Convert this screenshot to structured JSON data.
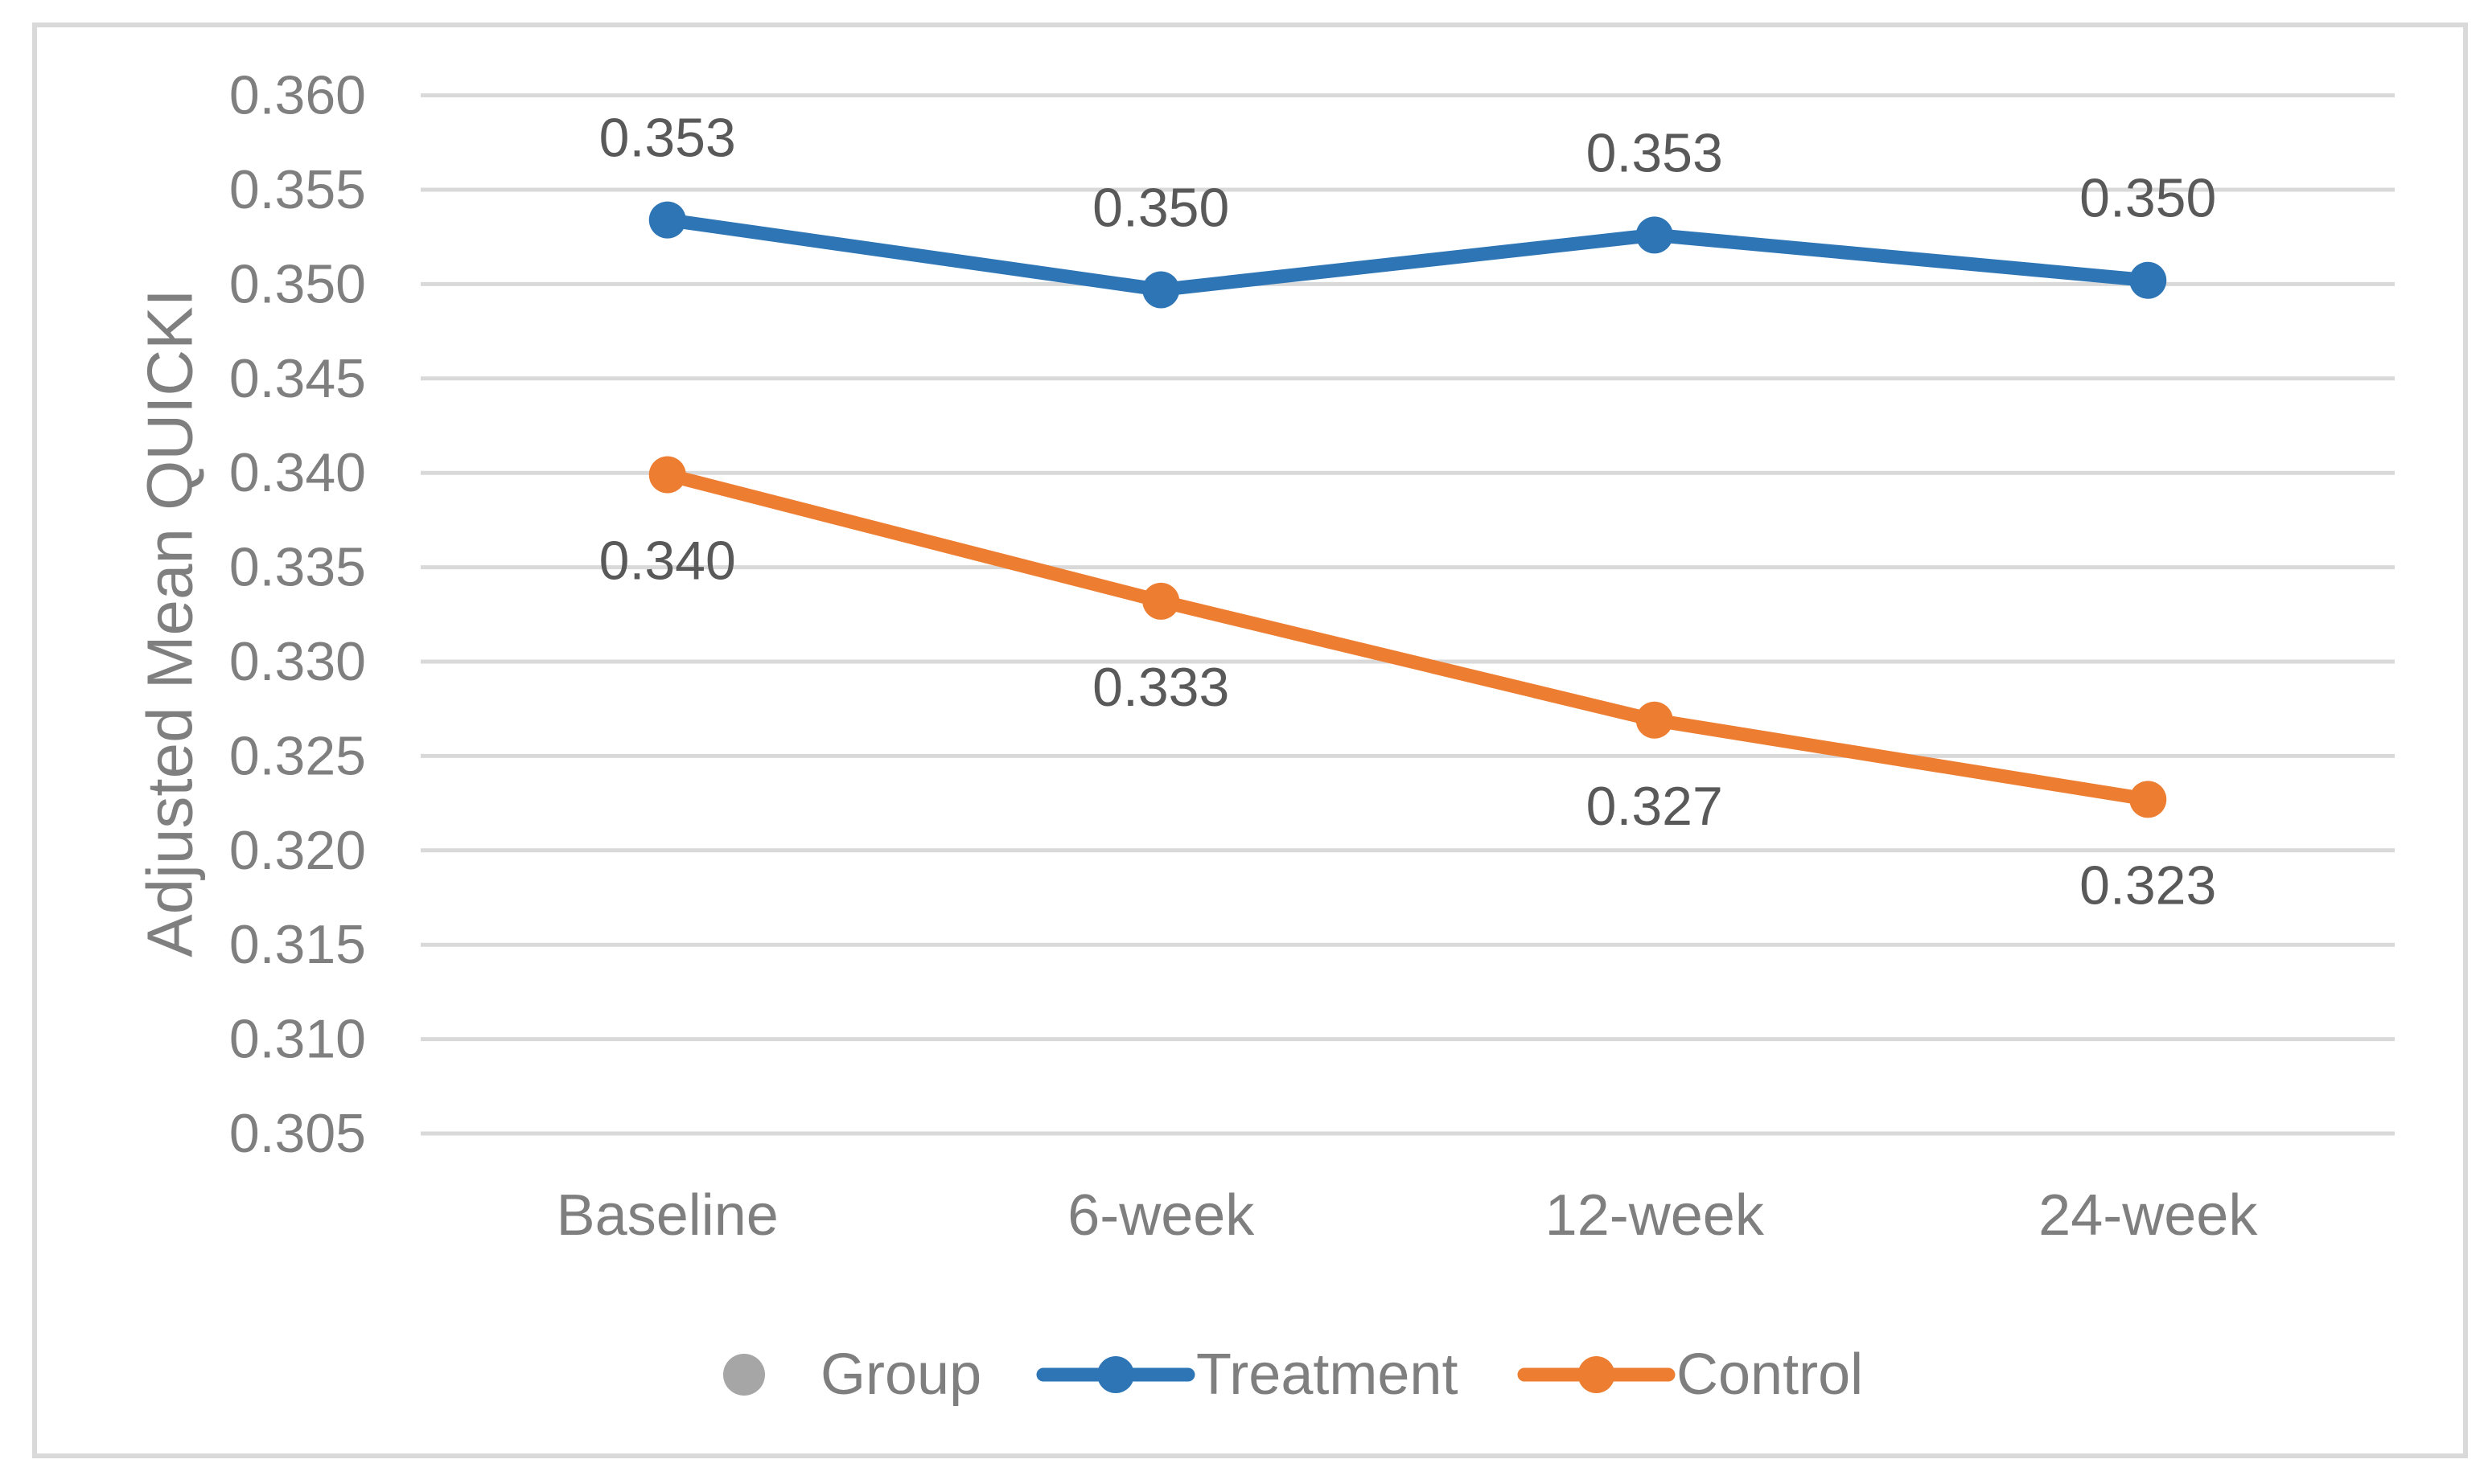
{
  "figure": {
    "background": "#FFFFFF",
    "border_color": "#D9D9D9"
  },
  "chart_data": {
    "type": "line",
    "title": "",
    "xlabel": "",
    "ylabel": "Adjusted Mean QUICKI",
    "categories": [
      "Baseline",
      "6-week",
      "12-week",
      "24-week"
    ],
    "series": [
      {
        "name": "Group",
        "role": "legend-only",
        "color": "#A6A6A6",
        "values": [],
        "marker_values": [],
        "data_labels": [],
        "label_position": "none"
      },
      {
        "name": "Treatment",
        "role": "line",
        "color": "#2E75B6",
        "values": [
          0.353,
          0.35,
          0.353,
          0.35
        ],
        "marker_values": [
          0.3534,
          0.3497,
          0.3526,
          0.3502
        ],
        "data_labels": [
          "0.353",
          "0.350",
          "0.353",
          "0.350"
        ],
        "label_position": "above"
      },
      {
        "name": "Control",
        "role": "line",
        "color": "#ED7D31",
        "values": [
          0.34,
          0.333,
          0.327,
          0.323
        ],
        "marker_values": [
          0.3399,
          0.3332,
          0.3269,
          0.3227
        ],
        "data_labels": [
          "0.340",
          "0.333",
          "0.327",
          "0.323"
        ],
        "label_position": "below"
      }
    ],
    "y_axis": {
      "min": 0.305,
      "max": 0.36,
      "step": 0.005,
      "tick_labels": [
        "0.360",
        "0.355",
        "0.350",
        "0.345",
        "0.340",
        "0.335",
        "0.330",
        "0.325",
        "0.320",
        "0.315",
        "0.310",
        "0.305"
      ]
    },
    "legend": {
      "position": "bottom",
      "entries": [
        "Group",
        "Treatment",
        "Control"
      ]
    },
    "grid": "horizontal",
    "gridline_color": "#D9D9D9",
    "text_colors": {
      "tick": "#7F7F7F",
      "axis_title": "#7F7F7F",
      "legend": "#7F7F7F",
      "data_label": "#595959"
    }
  }
}
